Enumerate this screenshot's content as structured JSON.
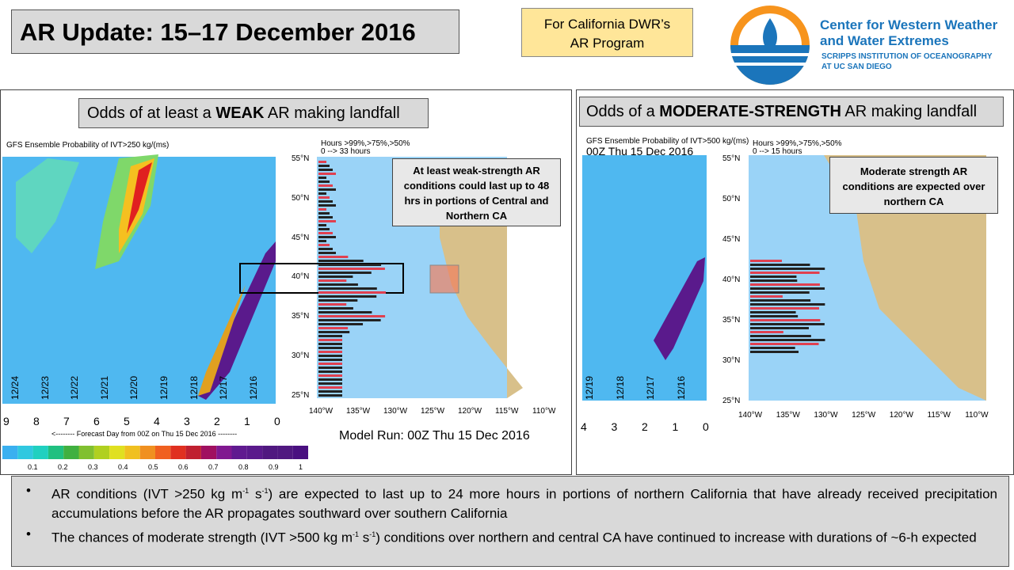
{
  "header": {
    "title": "AR Update: 15–17 December 2016",
    "program_line1": "For California DWR’s",
    "program_line2": "AR Program"
  },
  "logo": {
    "line1": "Center for Western Weather",
    "line2": "and Water Extremes",
    "line3": "SCRIPPS INSTITUTION OF OCEANOGRAPHY",
    "line4": "AT UC SAN DIEGO"
  },
  "left_panel": {
    "title": [
      "Odds of at least a ",
      "WEAK",
      " AR making landfall"
    ],
    "caption": "GFS Ensemble Probability of IVT>250 kg/(ms)",
    "hours_line1": "Hours >99%,>75%,>50%",
    "hours_line2": "0 --> 33 hours",
    "dates": [
      "12/24",
      "12/23",
      "12/22",
      "12/21",
      "12/20",
      "12/19",
      "12/18",
      "12/17",
      "12/16"
    ],
    "days": [
      "9",
      "8",
      "7",
      "6",
      "5",
      "4",
      "3",
      "2",
      "1",
      "0"
    ],
    "x_caption": "<-------- Forecast Day from 00Z on Thu 15 Dec 2016 --------",
    "colorbar": [
      "0.1",
      "0.2",
      "0.3",
      "0.4",
      "0.5",
      "0.6",
      "0.7",
      "0.8",
      "0.9",
      "1"
    ],
    "lats": [
      "55°N",
      "50°N",
      "45°N",
      "40°N",
      "35°N",
      "30°N",
      "25°N"
    ],
    "lons": [
      "140°W",
      "135°W",
      "130°W",
      "125°W",
      "120°W",
      "115°W",
      "110°W"
    ],
    "annotation": "At least weak-strength AR conditions could last up to 48 hrs in portions of Central and Northern CA",
    "model_run": "Model Run: 00Z Thu 15 Dec 2016"
  },
  "right_panel": {
    "title": [
      "Odds of a ",
      "MODERATE-STRENGTH",
      " AR making landfall"
    ],
    "caption": "GFS Ensemble Probability of IVT>500 kg/(ms)",
    "run": "00Z Thu 15 Dec 2016",
    "hours_line1": "Hours >99%,>75%,>50%",
    "hours_line2": "0 --> 15 hours",
    "dates": [
      "12/19",
      "12/18",
      "12/17",
      "12/16"
    ],
    "days": [
      "4",
      "3",
      "2",
      "1",
      "0"
    ],
    "lats": [
      "55°N",
      "50°N",
      "45°N",
      "40°N",
      "35°N",
      "30°N",
      "25°N"
    ],
    "lons": [
      "140°W",
      "135°W",
      "130°W",
      "125°W",
      "120°W",
      "115°W",
      "110°W"
    ],
    "annotation": "Moderate strength AR conditions are expected over northern CA"
  },
  "bullets": [
    [
      "AR conditions (IVT >250 kg m",
      "-1",
      " s",
      "-1",
      ") are expected to last up to 24 more hours in portions of northern California that have already received precipitation accumulations before the AR propagates southward over southern California"
    ],
    [
      "The chances of moderate strength (IVT >500 kg m",
      "-1",
      " s",
      "-1",
      ") conditions over northern and central CA have continued to increase with durations of ~6-h expected"
    ]
  ]
}
